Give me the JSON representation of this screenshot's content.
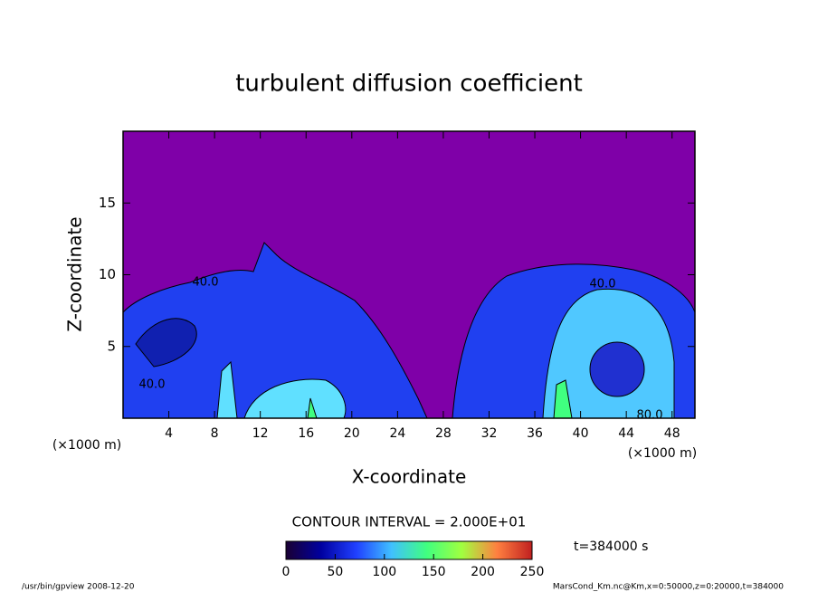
{
  "chart_data": {
    "type": "contour",
    "title": "turbulent diffusion coefficient",
    "xlabel": "X-coordinate",
    "ylabel": "Z-coordinate",
    "x_unit": "(×1000 m)",
    "y_unit": "(×1000 m)",
    "xlim": [
      0,
      50
    ],
    "ylim": [
      0,
      20
    ],
    "xticks": [
      4,
      8,
      12,
      16,
      20,
      24,
      28,
      32,
      36,
      40,
      44,
      48
    ],
    "yticks": [
      5,
      10,
      15
    ],
    "contour_labels": [
      "40.0",
      "40.0",
      "40.0",
      "80.0"
    ],
    "contour_interval": "CONTOUR INTERVAL = 2.000E+01",
    "time_label": "t=384000 s",
    "colorbar": {
      "lim": [
        0,
        250
      ],
      "ticks": [
        0,
        50,
        100,
        150,
        200,
        250
      ],
      "colors": [
        "#1a0033",
        "#0000a0",
        "#2040ff",
        "#40c0ff",
        "#40ff80",
        "#a0ff40",
        "#ff8040",
        "#c02020"
      ]
    },
    "footer_left": "/usr/bin/gpview  2008-12-20",
    "footer_right": "MarsCond_Km.nc@Km,x=0:50000,z=0:20000,t=384000"
  }
}
